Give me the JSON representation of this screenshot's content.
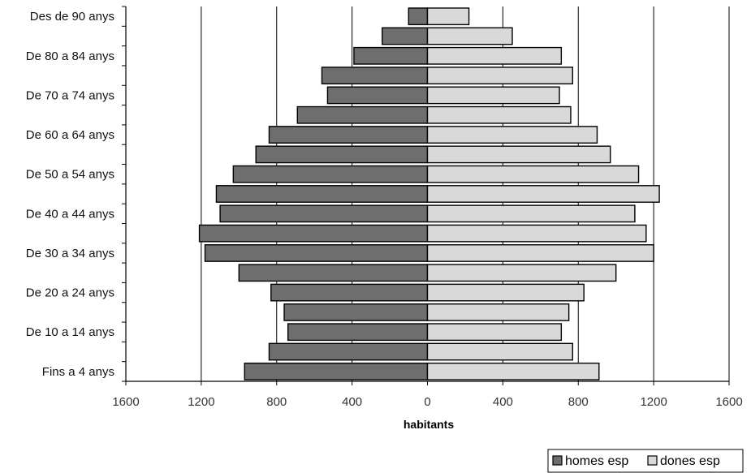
{
  "chart_data": {
    "type": "bar",
    "orientation": "horizontal-population-pyramid",
    "categories": [
      "Fins a 4 anys",
      "",
      "De 10 a 14 anys",
      "",
      "De 20 a 24 anys",
      "",
      "De 30 a 34 anys",
      "",
      "De 40 a 44 anys",
      "",
      "De 50 a 54 anys",
      "",
      "De 60 a 64 anys",
      "",
      "De 70 a 74 anys",
      "",
      "De 80 a 84 anys",
      "",
      "Des de 90 anys"
    ],
    "series": [
      {
        "name": "homes esp",
        "color": "#6e6e6e",
        "side": "left",
        "values": [
          970,
          840,
          740,
          760,
          830,
          1000,
          1180,
          1210,
          1100,
          1120,
          1030,
          910,
          840,
          690,
          530,
          560,
          390,
          240,
          100
        ]
      },
      {
        "name": "dones esp",
        "color": "#d9d9d9",
        "side": "right",
        "values": [
          910,
          770,
          710,
          750,
          830,
          1000,
          1200,
          1160,
          1100,
          1230,
          1120,
          970,
          900,
          760,
          700,
          770,
          710,
          450,
          220
        ]
      }
    ],
    "xlabel": "habitants",
    "xlim": [
      -1600,
      1600
    ],
    "xticks": [
      -1600,
      -1200,
      -800,
      -400,
      0,
      400,
      800,
      1200,
      1600
    ],
    "xtick_labels": [
      "1600",
      "1200",
      "800",
      "400",
      "0",
      "400",
      "800",
      "1200",
      "1600"
    ],
    "grid": true,
    "legend_position": "bottom-right"
  }
}
